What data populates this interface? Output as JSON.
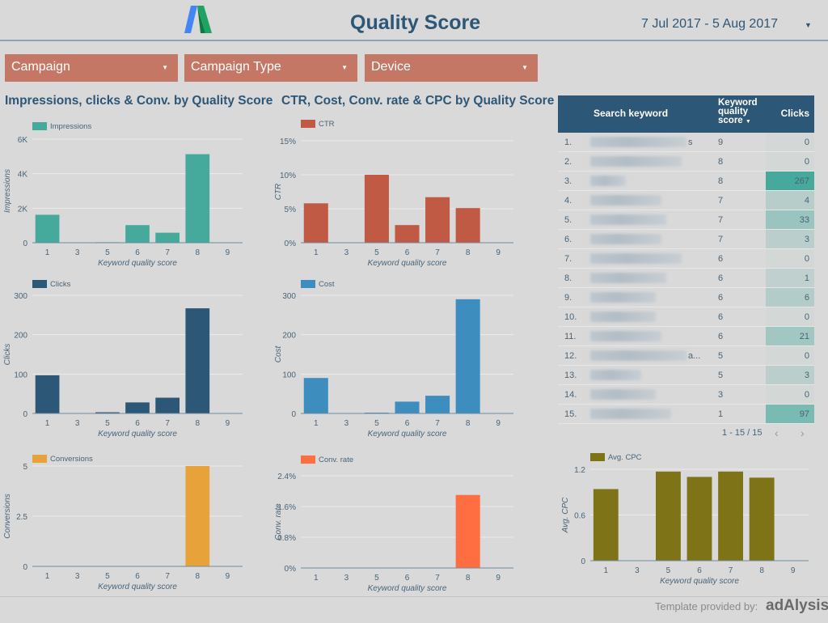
{
  "header": {
    "title": "Quality Score",
    "date_range": "7 Jul 2017 - 5 Aug 2017",
    "logo": "Google AdWords logo"
  },
  "filters": [
    {
      "label": "Campaign"
    },
    {
      "label": "Campaign Type"
    },
    {
      "label": "Device"
    }
  ],
  "sections": {
    "left_title": "Impressions, clicks & Conv. by Quality Score",
    "middle_title": "CTR, Cost, Conv. rate & CPC by Quality Score"
  },
  "chart_data": [
    {
      "id": "impressions",
      "type": "bar",
      "legend": "Impressions",
      "ylabel": "Impressions",
      "xlabel": "Keyword quality score",
      "categories": [
        "1",
        "3",
        "5",
        "6",
        "7",
        "8",
        "9"
      ],
      "values": [
        1620,
        10,
        30,
        1020,
        580,
        5130,
        5
      ],
      "ylim": [
        0,
        6000
      ],
      "yticks": [
        "0",
        "2K",
        "4K",
        "6K"
      ],
      "ytick_values": [
        0,
        2000,
        4000,
        6000
      ],
      "color": "#45a99c",
      "grid": true,
      "legend_position": "top-left"
    },
    {
      "id": "ctr",
      "type": "bar",
      "legend": "CTR",
      "ylabel": "CTR",
      "xlabel": "Keyword quality score",
      "categories": [
        "1",
        "3",
        "5",
        "6",
        "7",
        "8",
        "9"
      ],
      "values": [
        5.8,
        0,
        10,
        2.6,
        6.7,
        5.1,
        0
      ],
      "ylim": [
        0,
        15
      ],
      "yticks": [
        "0%",
        "5%",
        "10%",
        "15%"
      ],
      "ytick_values": [
        0,
        5,
        10,
        15
      ],
      "color": "#c05a45",
      "grid": true,
      "legend_position": "top-left"
    },
    {
      "id": "clicks",
      "type": "bar",
      "legend": "Clicks",
      "ylabel": "Clicks",
      "xlabel": "Keyword quality score",
      "categories": [
        "1",
        "3",
        "5",
        "6",
        "7",
        "8",
        "9"
      ],
      "values": [
        97,
        0,
        3,
        28,
        40,
        267,
        0
      ],
      "ylim": [
        0,
        300
      ],
      "yticks": [
        "0",
        "100",
        "200",
        "300"
      ],
      "ytick_values": [
        0,
        100,
        200,
        300
      ],
      "color": "#2c5777",
      "grid": true,
      "legend_position": "top-left"
    },
    {
      "id": "cost",
      "type": "bar",
      "legend": "Cost",
      "ylabel": "Cost",
      "xlabel": "Keyword quality score",
      "categories": [
        "1",
        "3",
        "5",
        "6",
        "7",
        "8",
        "9"
      ],
      "values": [
        90,
        0,
        2,
        30,
        45,
        290,
        0
      ],
      "ylim": [
        0,
        300
      ],
      "yticks": [
        "0",
        "100",
        "200",
        "300"
      ],
      "ytick_values": [
        0,
        100,
        200,
        300
      ],
      "color": "#3d8ebf",
      "grid": true,
      "legend_position": "top-left"
    },
    {
      "id": "conversions",
      "type": "bar",
      "legend": "Conversions",
      "ylabel": "Conversions",
      "xlabel": "Keyword quality score",
      "categories": [
        "1",
        "3",
        "5",
        "6",
        "7",
        "8",
        "9"
      ],
      "values": [
        0,
        0,
        0,
        0,
        0,
        5,
        0
      ],
      "ylim": [
        0,
        5
      ],
      "yticks": [
        "0",
        "2.5",
        "5"
      ],
      "ytick_values": [
        0,
        2.5,
        5
      ],
      "color": "#e8a23a",
      "grid": true,
      "legend_position": "top-left"
    },
    {
      "id": "conv_rate",
      "type": "bar",
      "legend": "Conv. rate",
      "ylabel": "Conv. rate",
      "xlabel": "Keyword quality score",
      "categories": [
        "1",
        "3",
        "5",
        "6",
        "7",
        "8",
        "9"
      ],
      "values": [
        0,
        0,
        0,
        0,
        0,
        1.9,
        0
      ],
      "ylim": [
        0,
        2.4
      ],
      "yticks": [
        "0%",
        "0.8%",
        "1.6%",
        "2.4%"
      ],
      "ytick_values": [
        0,
        0.8,
        1.6,
        2.4
      ],
      "color": "#ff6e40",
      "grid": true,
      "legend_position": "top-left"
    },
    {
      "id": "avg_cpc",
      "type": "bar",
      "legend": "Avg. CPC",
      "ylabel": "Avg. CPC",
      "xlabel": "Keyword quality score",
      "categories": [
        "1",
        "3",
        "5",
        "6",
        "7",
        "8",
        "9"
      ],
      "values": [
        0.94,
        0,
        1.17,
        1.1,
        1.17,
        1.09,
        0
      ],
      "ylim": [
        0,
        1.2
      ],
      "yticks": [
        "0",
        "0.6",
        "1.2"
      ],
      "ytick_values": [
        0,
        0.6,
        1.2
      ],
      "color": "#7f7317",
      "grid": true,
      "legend_position": "top-left"
    }
  ],
  "table": {
    "headers": {
      "keyword": "Search keyword",
      "qs_line1": "Keyword",
      "qs_line2": "quality",
      "qs_line3": "score",
      "clicks": "Clicks"
    },
    "sort_icon": "caret-down-icon",
    "rows": [
      {
        "n": "1.",
        "qs": "9",
        "clicks": "0",
        "tail": "s",
        "kwlen": 0.95
      },
      {
        "n": "2.",
        "qs": "8",
        "clicks": "0",
        "kwlen": 0.9
      },
      {
        "n": "3.",
        "qs": "8",
        "clicks": "267",
        "kwlen": 0.35
      },
      {
        "n": "4.",
        "qs": "7",
        "clicks": "4",
        "kwlen": 0.7
      },
      {
        "n": "5.",
        "qs": "7",
        "clicks": "33",
        "kwlen": 0.75
      },
      {
        "n": "6.",
        "qs": "7",
        "clicks": "3",
        "kwlen": 0.7
      },
      {
        "n": "7.",
        "qs": "6",
        "clicks": "0",
        "kwlen": 0.9
      },
      {
        "n": "8.",
        "qs": "6",
        "clicks": "1",
        "kwlen": 0.75
      },
      {
        "n": "9.",
        "qs": "6",
        "clicks": "6",
        "kwlen": 0.65
      },
      {
        "n": "10.",
        "qs": "6",
        "clicks": "0",
        "kwlen": 0.65
      },
      {
        "n": "11.",
        "qs": "6",
        "clicks": "21",
        "kwlen": 0.7
      },
      {
        "n": "12.",
        "qs": "5",
        "clicks": "0",
        "tail": "a...",
        "kwlen": 0.95
      },
      {
        "n": "13.",
        "qs": "5",
        "clicks": "3",
        "kwlen": 0.5
      },
      {
        "n": "14.",
        "qs": "3",
        "clicks": "0",
        "kwlen": 0.65
      },
      {
        "n": "15.",
        "qs": "1",
        "clicks": "97",
        "kwlen": 0.8
      }
    ],
    "clicks_max": 267,
    "heat_color": "#45a99c",
    "pager": "1 - 15 / 15"
  },
  "footer": {
    "text": "Template provided by:",
    "logo": "adAlysis"
  }
}
